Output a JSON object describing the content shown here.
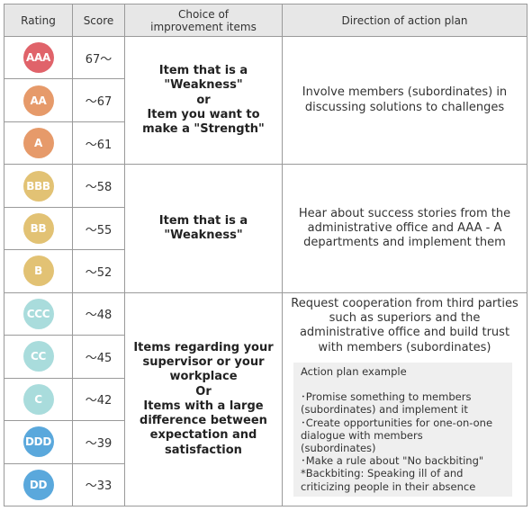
{
  "headers": {
    "rating": "Rating",
    "score": "Score",
    "choice": [
      "Choice of",
      "improvement items"
    ],
    "direction": "Direction of action plan"
  },
  "colors": {
    "red": "#e0636a",
    "orange": "#e69a6a",
    "yellow": "#e2c274",
    "teal": "#a9dcdc",
    "blue": "#5aa8dc"
  },
  "rows": [
    {
      "rating": "AAA",
      "score": "67～",
      "color": "#e0636a"
    },
    {
      "rating": "AA",
      "score": "～67",
      "color": "#e69a6a"
    },
    {
      "rating": "A",
      "score": "～61",
      "color": "#e69a6a"
    },
    {
      "rating": "BBB",
      "score": "～58",
      "color": "#e2c274"
    },
    {
      "rating": "BB",
      "score": "～55",
      "color": "#e2c274"
    },
    {
      "rating": "B",
      "score": "～52",
      "color": "#e2c274"
    },
    {
      "rating": "CCC",
      "score": "～48",
      "color": "#a9dcdc"
    },
    {
      "rating": "CC",
      "score": "～45",
      "color": "#a9dcdc"
    },
    {
      "rating": "C",
      "score": "～42",
      "color": "#a9dcdc"
    },
    {
      "rating": "DDD",
      "score": "～39",
      "color": "#5aa8dc"
    },
    {
      "rating": "DD",
      "score": "～33",
      "color": "#5aa8dc"
    }
  ],
  "groups": [
    {
      "choice": [
        "Item that is a",
        "\"Weakness\"",
        "or",
        "Item you want to",
        "make a \"Strength\""
      ],
      "direction": [
        "Involve members (subordinates) in",
        "discussing solutions to challenges"
      ]
    },
    {
      "choice": [
        "Item that is a",
        "\"Weakness\""
      ],
      "direction": [
        "Hear about success stories from the",
        "administrative office and AAA - A",
        "departments and implement them"
      ]
    },
    {
      "choice": [
        "Items regarding your",
        "supervisor or your",
        "workplace",
        "Or",
        "Items with a large",
        "difference between",
        "expectation and",
        "satisfaction"
      ],
      "direction": [
        "Request cooperation from third parties",
        "such as superiors and the",
        "administrative office and build trust",
        "with members (subordinates)"
      ],
      "example": {
        "title": "Action plan example",
        "lines": [
          "･Promise something to members",
          "(subordinates) and implement it",
          "･Create opportunities for one-on-one",
          "dialogue with members",
          "(subordinates)",
          "･Make a rule about \"No backbiting\"",
          "*Backbiting: Speaking ill of and",
          "criticizing people in their absence"
        ]
      }
    }
  ]
}
